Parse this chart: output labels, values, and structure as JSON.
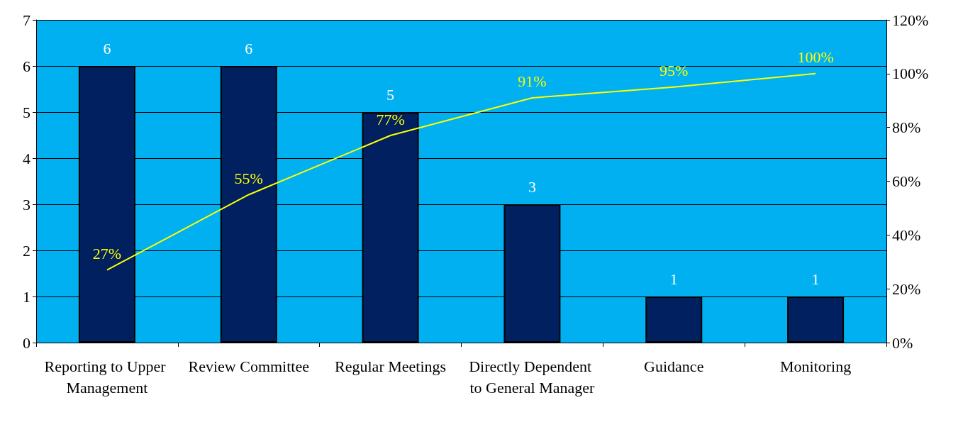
{
  "chart_data": {
    "type": "bar",
    "categories": [
      "Reporting to Upper Management",
      "Review Committee",
      "Regular Meetings",
      "Directly Dependent to General Manager",
      "Guidance",
      "Monitoring"
    ],
    "series": [
      {
        "color": "#002060",
        "values": [
          6,
          6,
          5,
          3,
          1,
          1
        ]
      },
      {
        "type": "line",
        "axis": "y2",
        "color": "#ffff00",
        "values": [
          27,
          55,
          77,
          91,
          95,
          100
        ],
        "value_labels": [
          "27%",
          "55%",
          "77%",
          "91%",
          "95%",
          "100%"
        ]
      }
    ],
    "ylim": [
      0,
      7
    ],
    "yticks": [
      0,
      1,
      2,
      3,
      4,
      5,
      6,
      7
    ],
    "y2lim": [
      0,
      120
    ],
    "y2ticks": [
      {
        "value": 0,
        "label": "0%"
      },
      {
        "value": 20,
        "label": "20%"
      },
      {
        "value": 40,
        "label": "40%"
      },
      {
        "value": 60,
        "label": "60%"
      },
      {
        "value": 80,
        "label": "80%"
      },
      {
        "value": 100,
        "label": "100%"
      },
      {
        "value": 120,
        "label": "120%"
      }
    ],
    "grid": "y",
    "marker": "none",
    "data_labels": true
  }
}
